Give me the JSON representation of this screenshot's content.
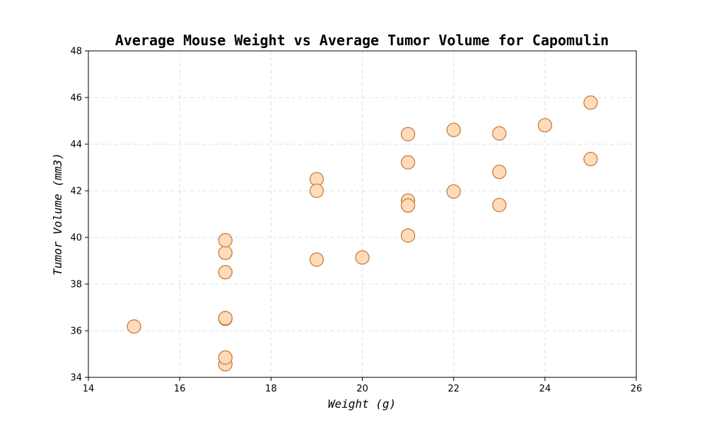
{
  "chart_data": {
    "type": "scatter",
    "title": "Average Mouse Weight vs Average Tumor Volume for Capomulin",
    "xlabel": "Weight (g)",
    "ylabel": "Tumor Volume (mm3)",
    "xlim": [
      14,
      26
    ],
    "ylim": [
      34,
      48
    ],
    "xticks": [
      14,
      16,
      18,
      20,
      22,
      24,
      26
    ],
    "yticks": [
      34,
      36,
      38,
      40,
      42,
      44,
      46,
      48
    ],
    "grid": true,
    "marker_fill": "#ffdbbb",
    "marker_edge": "#c87f3c",
    "series": [
      {
        "x": [
          15,
          17,
          17,
          17,
          17,
          17,
          17,
          17,
          19,
          19,
          19,
          20,
          21,
          21,
          21,
          21,
          21,
          22,
          22,
          23,
          23,
          23,
          24,
          25,
          25
        ],
        "y": [
          36.18,
          34.56,
          34.85,
          36.51,
          36.54,
          38.51,
          39.34,
          39.88,
          42.5,
          42.0,
          39.05,
          39.14,
          44.43,
          43.22,
          41.58,
          41.37,
          40.08,
          44.61,
          41.97,
          44.46,
          42.81,
          41.39,
          44.81,
          45.78,
          43.36
        ]
      }
    ]
  }
}
